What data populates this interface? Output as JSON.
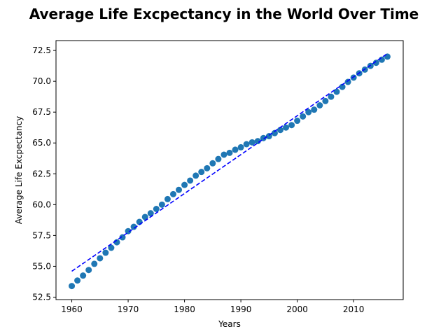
{
  "chart_data": {
    "type": "scatter",
    "title": "Average Life Excpectancy in the World Over Time",
    "xlabel": "Years",
    "ylabel": "Average Life Excpectancy",
    "xlim": [
      1957.2,
      2018.8
    ],
    "ylim": [
      52.3,
      73.3
    ],
    "xticks": [
      1960,
      1970,
      1980,
      1990,
      2000,
      2010
    ],
    "yticks": [
      52.5,
      55.0,
      57.5,
      60.0,
      62.5,
      65.0,
      67.5,
      70.0,
      72.5
    ],
    "ytick_labels": [
      "52.5",
      "55.0",
      "57.5",
      "60.0",
      "62.5",
      "65.0",
      "67.5",
      "70.0",
      "72.5"
    ],
    "grid": false,
    "legend": "none",
    "series": [
      {
        "style": "markers",
        "color": "#1f77b4",
        "x": [
          1960,
          1961,
          1962,
          1963,
          1964,
          1965,
          1966,
          1967,
          1968,
          1969,
          1970,
          1971,
          1972,
          1973,
          1974,
          1975,
          1976,
          1977,
          1978,
          1979,
          1980,
          1981,
          1982,
          1983,
          1984,
          1985,
          1986,
          1987,
          1988,
          1989,
          1990,
          1991,
          1992,
          1993,
          1994,
          1995,
          1996,
          1997,
          1998,
          1999,
          2000,
          2001,
          2002,
          2003,
          2004,
          2005,
          2006,
          2007,
          2008,
          2009,
          2010,
          2011,
          2012,
          2013,
          2014,
          2015,
          2016
        ],
        "y": [
          53.4,
          53.85,
          54.25,
          54.7,
          55.2,
          55.65,
          56.1,
          56.5,
          56.95,
          57.35,
          57.85,
          58.2,
          58.6,
          59.0,
          59.3,
          59.65,
          60.0,
          60.45,
          60.85,
          61.2,
          61.6,
          61.95,
          62.35,
          62.65,
          62.95,
          63.35,
          63.7,
          64.05,
          64.2,
          64.45,
          64.65,
          64.9,
          65.05,
          65.15,
          65.4,
          65.55,
          65.8,
          66.05,
          66.25,
          66.45,
          66.8,
          67.15,
          67.5,
          67.7,
          68.05,
          68.4,
          68.75,
          69.15,
          69.55,
          69.95,
          70.3,
          70.65,
          70.95,
          71.25,
          71.5,
          71.75,
          72.0
        ]
      },
      {
        "style": "dashed-line",
        "color": "#0000ff",
        "x": [
          1960,
          2016
        ],
        "y": [
          54.6,
          72.25
        ]
      }
    ]
  }
}
